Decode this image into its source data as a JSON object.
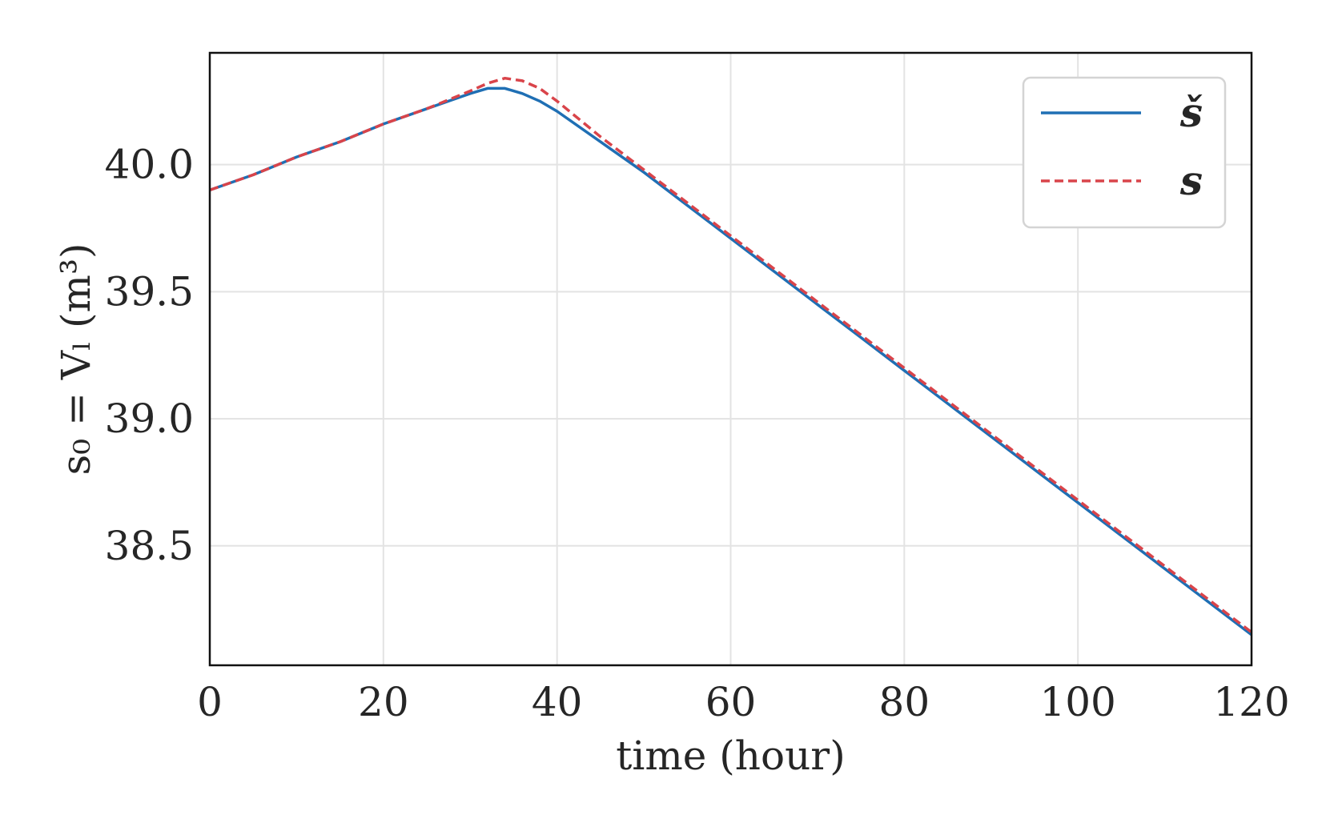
{
  "chart_data": {
    "type": "line",
    "title": "",
    "xlabel": "time (hour)",
    "ylabel": "s₀ = Vₗ (m³)",
    "xlim": [
      0,
      120
    ],
    "ylim": [
      38.03,
      40.44
    ],
    "xticks": [
      "0",
      "20",
      "40",
      "60",
      "80",
      "100",
      "120"
    ],
    "yticks": [
      "38.5",
      "39.0",
      "39.5",
      "40.0"
    ],
    "grid": true,
    "legend_position": "top-right",
    "series": [
      {
        "name": "š",
        "color": "#1f6fb4",
        "style": "solid",
        "x": [
          0,
          5,
          10,
          15,
          20,
          25,
          30,
          32,
          34,
          36,
          38,
          40,
          45,
          50,
          55,
          60,
          65,
          70,
          75,
          80,
          85,
          90,
          95,
          100,
          105,
          110,
          115,
          120
        ],
        "y": [
          39.9,
          39.96,
          40.03,
          40.09,
          40.16,
          40.22,
          40.28,
          40.3,
          40.3,
          40.28,
          40.25,
          40.21,
          40.09,
          39.97,
          39.84,
          39.71,
          39.58,
          39.45,
          39.32,
          39.19,
          39.06,
          38.93,
          38.8,
          38.67,
          38.54,
          38.41,
          38.28,
          38.15
        ]
      },
      {
        "name": "s",
        "color": "#d9444a",
        "style": "dashed",
        "x": [
          0,
          5,
          10,
          15,
          20,
          25,
          30,
          32,
          34,
          36,
          38,
          40,
          45,
          50,
          55,
          60,
          65,
          70,
          75,
          80,
          85,
          90,
          95,
          100,
          105,
          110,
          115,
          120
        ],
        "y": [
          39.9,
          39.96,
          40.03,
          40.09,
          40.16,
          40.22,
          40.29,
          40.32,
          40.34,
          40.33,
          40.3,
          40.25,
          40.11,
          39.98,
          39.85,
          39.72,
          39.59,
          39.46,
          39.33,
          39.2,
          39.07,
          38.94,
          38.81,
          38.68,
          38.55,
          38.42,
          38.29,
          38.16
        ]
      }
    ]
  }
}
